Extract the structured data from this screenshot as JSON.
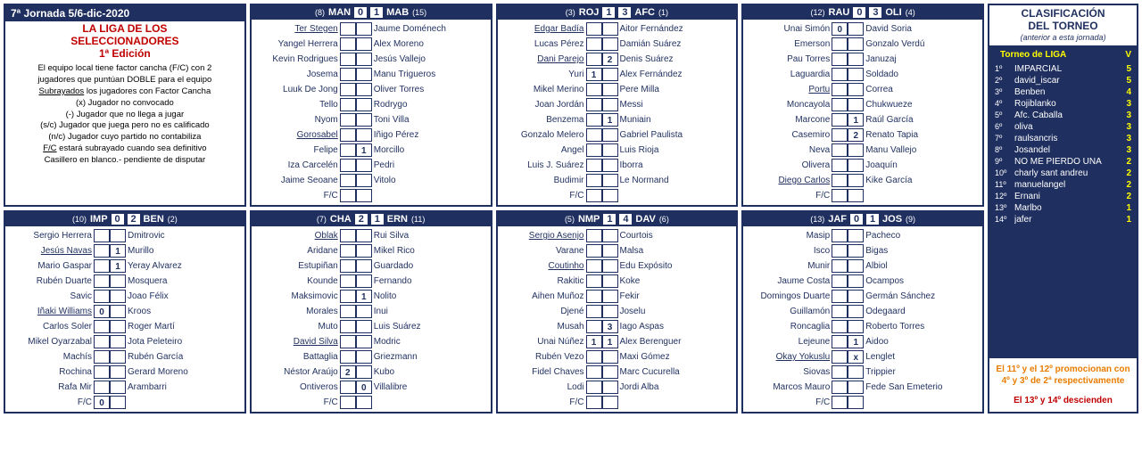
{
  "colors": {
    "navy": "#1f2f5f",
    "red": "#c00000",
    "yellow": "#ffff00",
    "orange": "#e97c00",
    "white": "#ffffff"
  },
  "info": {
    "header": "7ª Jornada  5/6-dic-2020",
    "title_l1": "LA LIGA DE LOS",
    "title_l2": "SELECCIONADORES",
    "title_l3": "1ª Edición",
    "lines": [
      "El equipo local tiene factor cancha (F/C) con 2",
      "jugadores que puntúan DOBLE para el equipo",
      "<span class='u'>Subrayados</span> los jugadores con Factor Cancha",
      "(x) Jugador no convocado",
      "(-) Jugador que no llega a jugar",
      "(s/c) Jugador que juega pero no es calificado",
      "(n/c) Jugador cuyo partido no contabiliza",
      "<span class='u'>F/C</span> estará subrayado cuando sea definitivo",
      "Casillero en blanco.- pendiente de disputar"
    ]
  },
  "fc_label": "F/C",
  "matches": [
    {
      "hSeed": "(8)",
      "hCode": "MAN",
      "hScore": "0",
      "aScore": "1",
      "aCode": "MAB",
      "aSeed": "(15)",
      "rows": [
        {
          "h": "Ter Stegen",
          "hu": true,
          "hv": "",
          "av": "",
          "a": "Jaume Doménech"
        },
        {
          "h": "Yangel Herrera",
          "hv": "",
          "av": "",
          "a": "Alex Moreno"
        },
        {
          "h": "Kevin Rodrigues",
          "hv": "",
          "av": "",
          "a": "Jesús Vallejo"
        },
        {
          "h": "Josema",
          "hv": "",
          "av": "",
          "a": "Manu Trigueros"
        },
        {
          "h": "Luuk De Jong",
          "hv": "",
          "av": "",
          "a": "Oliver Torres"
        },
        {
          "h": "Tello",
          "hv": "",
          "av": "",
          "a": "Rodrygo"
        },
        {
          "h": "Nyom",
          "hv": "",
          "av": "",
          "a": "Toni Villa"
        },
        {
          "h": "Gorosabel",
          "hu": true,
          "hv": "",
          "av": "",
          "a": "Iñigo Pérez"
        },
        {
          "h": "Felipe",
          "hv": "",
          "av": "1",
          "a": "Morcillo"
        },
        {
          "h": "Iza Carcelén",
          "hv": "",
          "av": "",
          "a": "Pedri"
        },
        {
          "h": "Jaime Seoane",
          "hv": "",
          "av": "",
          "a": "Vitolo"
        }
      ],
      "fcH": "",
      "fcA": ""
    },
    {
      "hSeed": "(3)",
      "hCode": "ROJ",
      "hScore": "1",
      "aScore": "3",
      "aCode": "AFC",
      "aSeed": "(1)",
      "rows": [
        {
          "h": "Edgar Badía",
          "hu": true,
          "hv": "",
          "av": "",
          "a": "Aitor Fernández"
        },
        {
          "h": "Lucas Pérez",
          "hv": "",
          "av": "",
          "a": "Damián Suárez"
        },
        {
          "h": "Dani Parejo",
          "hu": true,
          "hv": "",
          "av": "2",
          "a": "Denis Suárez"
        },
        {
          "h": "Yuri",
          "hv": "1",
          "av": "",
          "a": "Alex Fernández"
        },
        {
          "h": "Mikel Merino",
          "hv": "",
          "av": "",
          "a": "Pere Milla"
        },
        {
          "h": "Joan Jordán",
          "hv": "",
          "av": "",
          "a": "Messi"
        },
        {
          "h": "Benzema",
          "hv": "",
          "av": "1",
          "a": "Muniain"
        },
        {
          "h": "Gonzalo Melero",
          "hv": "",
          "av": "",
          "a": "Gabriel Paulista"
        },
        {
          "h": "Angel",
          "hv": "",
          "av": "",
          "a": "Luis Rioja"
        },
        {
          "h": "Luis J. Suárez",
          "hv": "",
          "av": "",
          "a": "Iborra"
        },
        {
          "h": "Budimir",
          "hv": "",
          "av": "",
          "a": "Le Normand"
        }
      ],
      "fcH": "",
      "fcA": ""
    },
    {
      "hSeed": "(12)",
      "hCode": "RAU",
      "hScore": "0",
      "aScore": "3",
      "aCode": "OLI",
      "aSeed": "(4)",
      "rows": [
        {
          "h": "Unai Simón",
          "hv": "0",
          "av": "",
          "a": "David Soria"
        },
        {
          "h": "Emerson",
          "hv": "",
          "av": "",
          "a": "Gonzalo Verdú"
        },
        {
          "h": "Pau Torres",
          "hv": "",
          "av": "",
          "a": "Januzaj"
        },
        {
          "h": "Laguardia",
          "hv": "",
          "av": "",
          "a": "Soldado"
        },
        {
          "h": "Portu",
          "hu": true,
          "hv": "",
          "av": "",
          "a": "Correa"
        },
        {
          "h": "Moncayola",
          "hv": "",
          "av": "",
          "a": "Chukwueze"
        },
        {
          "h": "Marcone",
          "hv": "",
          "av": "1",
          "a": "Raúl García"
        },
        {
          "h": "Casemiro",
          "hv": "",
          "av": "2",
          "a": "Renato Tapia"
        },
        {
          "h": "Neva",
          "hv": "",
          "av": "",
          "a": "Manu Vallejo"
        },
        {
          "h": "Olivera",
          "hv": "",
          "av": "",
          "a": "Joaquín"
        },
        {
          "h": "Diego Carlos",
          "hu": true,
          "hv": "",
          "av": "",
          "a": "Kike García"
        }
      ],
      "fcH": "",
      "fcA": ""
    },
    {
      "hSeed": "(10)",
      "hCode": "IMP",
      "hScore": "0",
      "aScore": "2",
      "aCode": "BEN",
      "aSeed": "(2)",
      "rows": [
        {
          "h": "Sergio Herrera",
          "hv": "",
          "av": "",
          "a": "Dmitrovic"
        },
        {
          "h": "Jesús Navas",
          "hu": true,
          "hv": "",
          "av": "1",
          "a": "Murillo"
        },
        {
          "h": "Mario Gaspar",
          "hv": "",
          "av": "1",
          "a": "Yeray Alvarez"
        },
        {
          "h": "Rubén Duarte",
          "hv": "",
          "av": "",
          "a": "Mosquera"
        },
        {
          "h": "Savic",
          "hv": "",
          "av": "",
          "a": "Joao Félix"
        },
        {
          "h": "Iñaki Williams",
          "hu": true,
          "hv": "0",
          "av": "",
          "a": "Kroos"
        },
        {
          "h": "Carlos Soler",
          "hv": "",
          "av": "",
          "a": "Roger Martí"
        },
        {
          "h": "Mikel Oyarzabal",
          "hv": "",
          "av": "",
          "a": "Jota Peleteiro"
        },
        {
          "h": "Machís",
          "hv": "",
          "av": "",
          "a": "Rubén García"
        },
        {
          "h": "Rochina",
          "hv": "",
          "av": "",
          "a": "Gerard Moreno"
        },
        {
          "h": "Rafa Mir",
          "hv": "",
          "av": "",
          "a": "Arambarri"
        }
      ],
      "fcH": "0",
      "fcA": ""
    },
    {
      "hSeed": "(7)",
      "hCode": "CHA",
      "hScore": "2",
      "aScore": "1",
      "aCode": "ERN",
      "aSeed": "(11)",
      "rows": [
        {
          "h": "Oblak",
          "hu": true,
          "hv": "",
          "av": "",
          "a": "Rui Silva"
        },
        {
          "h": "Aridane",
          "hv": "",
          "av": "",
          "a": "Mikel Rico"
        },
        {
          "h": "Estupiñan",
          "hv": "",
          "av": "",
          "a": "Guardado"
        },
        {
          "h": "Kounde",
          "hv": "",
          "av": "",
          "a": "Fernando"
        },
        {
          "h": "Maksimovic",
          "hv": "",
          "av": "1",
          "a": "Nolito"
        },
        {
          "h": "Morales",
          "hv": "",
          "av": "",
          "a": "Inui"
        },
        {
          "h": "Muto",
          "hv": "",
          "av": "",
          "a": "Luis Suárez"
        },
        {
          "h": "David Silva",
          "hu": true,
          "hv": "",
          "av": "",
          "a": "Modric"
        },
        {
          "h": "Battaglia",
          "hv": "",
          "av": "",
          "a": "Griezmann"
        },
        {
          "h": "Néstor Araújo",
          "hv": "2",
          "av": "",
          "a": "Kubo"
        },
        {
          "h": "Ontiveros",
          "hv": "",
          "av": "0",
          "a": "Villalibre"
        }
      ],
      "fcH": "",
      "fcA": ""
    },
    {
      "hSeed": "(5)",
      "hCode": "NMP",
      "hScore": "1",
      "aScore": "4",
      "aCode": "DAV",
      "aSeed": "(6)",
      "rows": [
        {
          "h": "Sergio Asenjo",
          "hu": true,
          "hv": "",
          "av": "",
          "a": "Courtois"
        },
        {
          "h": "Varane",
          "hv": "",
          "av": "",
          "a": "Malsa"
        },
        {
          "h": "Coutinho",
          "hu": true,
          "hv": "",
          "av": "",
          "a": "Edu Expósito"
        },
        {
          "h": "Rakitic",
          "hv": "",
          "av": "",
          "a": "Koke"
        },
        {
          "h": "Aihen Muñoz",
          "hv": "",
          "av": "",
          "a": "Fekir"
        },
        {
          "h": "Djené",
          "hv": "",
          "av": "",
          "a": "Joselu"
        },
        {
          "h": "Musah",
          "hv": "",
          "av": "3",
          "a": "Iago Aspas"
        },
        {
          "h": "Unai Núñez",
          "hv": "1",
          "av": "1",
          "a": "Alex Berenguer"
        },
        {
          "h": "Rubén Vezo",
          "hv": "",
          "av": "",
          "a": "Maxi Gómez"
        },
        {
          "h": "Fidel Chaves",
          "hv": "",
          "av": "",
          "a": "Marc Cucurella"
        },
        {
          "h": "Lodi",
          "hv": "",
          "av": "",
          "a": "Jordi Alba"
        }
      ],
      "fcH": "",
      "fcA": ""
    },
    {
      "hSeed": "(13)",
      "hCode": "JAF",
      "hScore": "0",
      "aScore": "1",
      "aCode": "JOS",
      "aSeed": "(9)",
      "rows": [
        {
          "h": "Masip",
          "hv": "",
          "av": "",
          "a": "Pacheco"
        },
        {
          "h": "Isco",
          "hv": "",
          "av": "",
          "a": "Bigas"
        },
        {
          "h": "Munir",
          "hv": "",
          "av": "",
          "a": "Albiol"
        },
        {
          "h": "Jaume Costa",
          "hv": "",
          "av": "",
          "a": "Ocampos"
        },
        {
          "h": "Domingos Duarte",
          "hv": "",
          "av": "",
          "a": "Germán Sánchez"
        },
        {
          "h": "Guillamón",
          "hv": "",
          "av": "",
          "a": "Odegaard"
        },
        {
          "h": "Roncaglia",
          "hv": "",
          "av": "",
          "a": "Roberto Torres"
        },
        {
          "h": "Lejeune",
          "hv": "",
          "av": "1",
          "a": "Aidoo"
        },
        {
          "h": "Okay Yokuslu",
          "hu": true,
          "hv": "",
          "av": "x",
          "a": "Lenglet"
        },
        {
          "h": "Siovas",
          "hv": "",
          "av": "",
          "a": "Trippier"
        },
        {
          "h": "Marcos Mauro",
          "hv": "",
          "av": "",
          "a": "Fede San Emeterio"
        }
      ],
      "fcH": "",
      "fcA": ""
    }
  ],
  "standings": {
    "header_l1": "CLASIFICACIÓN",
    "header_l2": "DEL TORNEO",
    "sub": "(anterior a esta jornada)",
    "table_title": "Torneo de LIGA",
    "col_v": "V",
    "rows": [
      {
        "pos": "1º",
        "name": "IMPARCIAL",
        "v": "5"
      },
      {
        "pos": "2º",
        "name": "david_iscar",
        "v": "5"
      },
      {
        "pos": "3º",
        "name": "Benben",
        "v": "4"
      },
      {
        "pos": "4º",
        "name": "Rojiblanko",
        "v": "3"
      },
      {
        "pos": "5º",
        "name": "Afc. Caballa",
        "v": "3"
      },
      {
        "pos": "6º",
        "name": "oliva",
        "v": "3"
      },
      {
        "pos": "7º",
        "name": "raulsancris",
        "v": "3"
      },
      {
        "pos": "8º",
        "name": "Josandel",
        "v": "3"
      },
      {
        "pos": "9º",
        "name": "NO ME PIERDO UNA",
        "v": "2"
      },
      {
        "pos": "10º",
        "name": "charly sant andreu",
        "v": "2"
      },
      {
        "pos": "11º",
        "name": "manuelangel",
        "v": "2"
      },
      {
        "pos": "12º",
        "name": "Ernani",
        "v": "2"
      },
      {
        "pos": "13º",
        "name": "Marlbo",
        "v": "1"
      },
      {
        "pos": "14º",
        "name": "jafer",
        "v": "1"
      }
    ],
    "note_promo": "El 11º y el 12º promocionan con 4º y 3º de 2ª respectivamente",
    "note_releg": "El 13º y 14º descienden"
  }
}
